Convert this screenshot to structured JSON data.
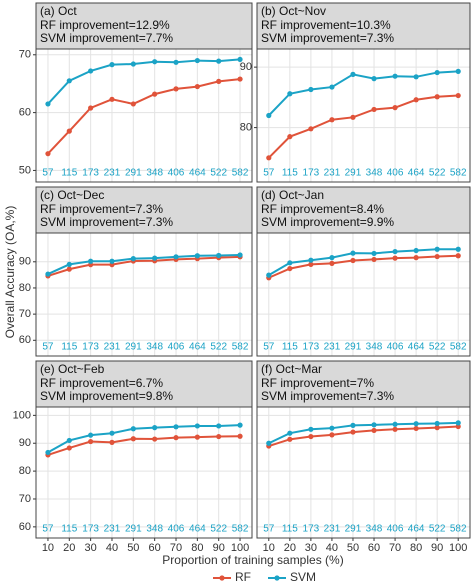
{
  "ylabel": "Overall Accuracy (OA,%)",
  "xlabel": "Proportion of training samples (%)",
  "sample_labels": [
    57,
    115,
    173,
    231,
    291,
    348,
    406,
    464,
    522,
    582
  ],
  "chart_data": [
    {
      "type": "line",
      "title": "(a) Oct",
      "annotations": [
        "RF improvement=12.9%",
        "SVM improvement=7.7%"
      ],
      "x": [
        10,
        20,
        30,
        40,
        50,
        60,
        70,
        80,
        90,
        100
      ],
      "xlim": [
        4.4,
        105.6
      ],
      "xticks": [
        10,
        20,
        30,
        40,
        50,
        60,
        70,
        80,
        90,
        100
      ],
      "ylim": [
        48,
        71
      ],
      "yticks": [
        50,
        60,
        70
      ],
      "grid": true,
      "series": [
        {
          "name": "RF",
          "color": "#e0533a",
          "values": [
            52.9,
            56.8,
            60.8,
            62.3,
            61.5,
            63.2,
            64.1,
            64.5,
            65.4,
            65.8
          ]
        },
        {
          "name": "SVM",
          "color": "#1ba3c6",
          "values": [
            61.5,
            65.5,
            67.2,
            68.3,
            68.4,
            68.8,
            68.7,
            69.0,
            68.9,
            69.2
          ]
        }
      ]
    },
    {
      "type": "line",
      "title": "(b) Oct~Nov",
      "annotations": [
        "RF improvement=10.3%",
        "SVM improvement=7.3%"
      ],
      "x": [
        10,
        20,
        30,
        40,
        50,
        60,
        70,
        80,
        90,
        100
      ],
      "xlim": [
        4.4,
        105.6
      ],
      "xticks": [
        10,
        20,
        30,
        40,
        50,
        60,
        70,
        80,
        90,
        100
      ],
      "ylim": [
        71,
        93
      ],
      "yticks": [
        80,
        90
      ],
      "grid": true,
      "series": [
        {
          "name": "RF",
          "color": "#e0533a",
          "values": [
            75.0,
            78.5,
            79.8,
            81.3,
            81.7,
            83.0,
            83.3,
            84.6,
            85.1,
            85.3
          ]
        },
        {
          "name": "SVM",
          "color": "#1ba3c6",
          "values": [
            82.0,
            85.6,
            86.3,
            86.7,
            88.8,
            88.1,
            88.5,
            88.4,
            89.1,
            89.3
          ]
        }
      ]
    },
    {
      "type": "line",
      "title": "(c) Oct~Dec",
      "annotations": [
        "RF improvement=7.3%",
        "SVM improvement=7.3%"
      ],
      "x": [
        10,
        20,
        30,
        40,
        50,
        60,
        70,
        80,
        90,
        100
      ],
      "xlim": [
        4.4,
        105.6
      ],
      "xticks": [
        10,
        20,
        30,
        40,
        50,
        60,
        70,
        80,
        90,
        100
      ],
      "ylim": [
        54,
        101
      ],
      "yticks": [
        60,
        70,
        80,
        90
      ],
      "grid": true,
      "series": [
        {
          "name": "RF",
          "color": "#e0533a",
          "values": [
            84.6,
            87.2,
            88.9,
            88.9,
            90.3,
            90.4,
            90.9,
            91.2,
            91.6,
            91.9
          ]
        },
        {
          "name": "SVM",
          "color": "#1ba3c6",
          "values": [
            85.3,
            89.0,
            90.2,
            90.2,
            91.2,
            91.4,
            91.9,
            92.3,
            92.4,
            92.6
          ]
        }
      ]
    },
    {
      "type": "line",
      "title": "(d) Oct~Jan",
      "annotations": [
        "RF improvement=8.4%",
        "SVM improvement=9.9%"
      ],
      "x": [
        10,
        20,
        30,
        40,
        50,
        60,
        70,
        80,
        90,
        100
      ],
      "xlim": [
        4.4,
        105.6
      ],
      "xticks": [
        10,
        20,
        30,
        40,
        50,
        60,
        70,
        80,
        90,
        100
      ],
      "ylim": [
        54,
        101
      ],
      "yticks": [
        60,
        70,
        80,
        90
      ],
      "grid": true,
      "series": [
        {
          "name": "RF",
          "color": "#e0533a",
          "values": [
            83.9,
            87.4,
            89.0,
            89.4,
            90.5,
            90.9,
            91.4,
            91.6,
            92.0,
            92.3
          ]
        },
        {
          "name": "SVM",
          "color": "#1ba3c6",
          "values": [
            84.9,
            89.6,
            90.6,
            91.6,
            93.3,
            93.2,
            93.9,
            94.3,
            94.8,
            94.8
          ]
        }
      ]
    },
    {
      "type": "line",
      "title": "(e) Oct~Feb",
      "annotations": [
        "RF improvement=6.7%",
        "SVM improvement=9.8%"
      ],
      "x": [
        10,
        20,
        30,
        40,
        50,
        60,
        70,
        80,
        90,
        100
      ],
      "xlim": [
        4.4,
        105.6
      ],
      "xticks": [
        10,
        20,
        30,
        40,
        50,
        60,
        70,
        80,
        90,
        100
      ],
      "ylim": [
        56,
        103
      ],
      "yticks": [
        60,
        70,
        80,
        90,
        100
      ],
      "grid": true,
      "series": [
        {
          "name": "RF",
          "color": "#e0533a",
          "values": [
            85.8,
            88.3,
            90.6,
            90.3,
            91.6,
            91.5,
            92.0,
            92.2,
            92.4,
            92.5
          ]
        },
        {
          "name": "SVM",
          "color": "#1ba3c6",
          "values": [
            86.7,
            91.0,
            92.9,
            93.6,
            95.2,
            95.6,
            95.9,
            96.2,
            96.2,
            96.5
          ]
        }
      ]
    },
    {
      "type": "line",
      "title": "(f) Oct~Mar",
      "annotations": [
        "RF improvement=7%",
        "SVM improvement=7.3%"
      ],
      "x": [
        10,
        20,
        30,
        40,
        50,
        60,
        70,
        80,
        90,
        100
      ],
      "xlim": [
        4.4,
        105.6
      ],
      "xticks": [
        10,
        20,
        30,
        40,
        50,
        60,
        70,
        80,
        90,
        100
      ],
      "ylim": [
        56,
        103
      ],
      "yticks": [
        60,
        70,
        80,
        90,
        100
      ],
      "grid": true,
      "series": [
        {
          "name": "RF",
          "color": "#e0533a",
          "values": [
            89.0,
            91.4,
            92.4,
            93.0,
            94.0,
            94.6,
            95.0,
            95.3,
            95.6,
            96.0
          ]
        },
        {
          "name": "SVM",
          "color": "#1ba3c6",
          "values": [
            90.0,
            93.6,
            95.0,
            95.4,
            96.4,
            96.6,
            96.8,
            97.0,
            97.1,
            97.3
          ]
        }
      ]
    }
  ]
}
